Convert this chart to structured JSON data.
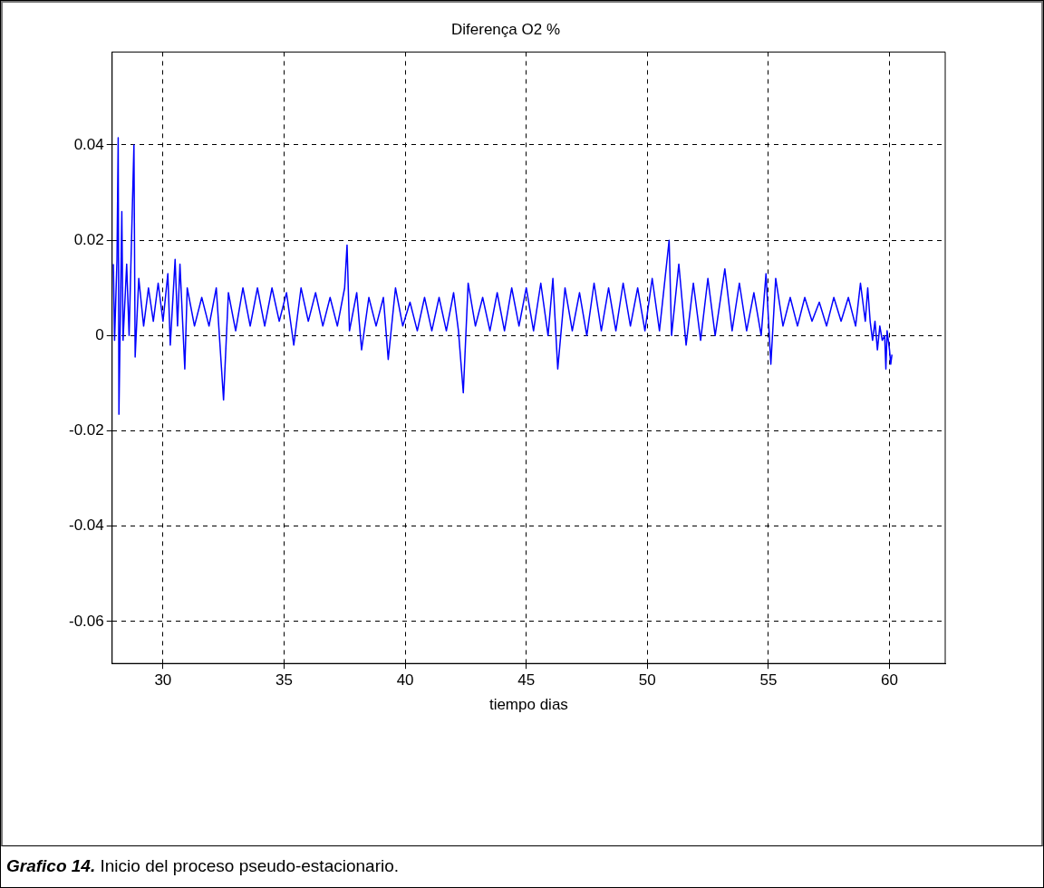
{
  "chart_data": {
    "type": "line",
    "title": "Diferença O2 %",
    "xlabel": "tiempo dias",
    "annotations": [
      "Grafico 14.",
      "Inicio del proceso pseudo-estacionario."
    ],
    "xlim": [
      27.9,
      62.3
    ],
    "ylim": [
      -0.0688,
      0.0595
    ],
    "xticks": [
      30,
      35,
      40,
      45,
      50,
      55,
      60
    ],
    "yticks": [
      -0.06,
      -0.04,
      -0.02,
      0,
      0.02,
      0.04
    ],
    "grid": true,
    "legend": false,
    "marker": "none",
    "line_style": "solid",
    "series": [
      {
        "color": "#0000ff",
        "x": [
          27.95,
          28.0,
          28.1,
          28.15,
          28.18,
          28.3,
          28.35,
          28.5,
          28.6,
          28.8,
          28.85,
          29.0,
          29.2,
          29.4,
          29.6,
          29.8,
          30.0,
          30.2,
          30.3,
          30.5,
          30.6,
          30.7,
          30.9,
          31.0,
          31.3,
          31.6,
          31.9,
          32.2,
          32.5,
          32.7,
          33.0,
          33.3,
          33.6,
          33.9,
          34.2,
          34.5,
          34.8,
          35.1,
          35.4,
          35.7,
          36.0,
          36.3,
          36.6,
          36.9,
          37.2,
          37.5,
          37.6,
          37.7,
          38.0,
          38.2,
          38.5,
          38.8,
          39.1,
          39.3,
          39.6,
          39.9,
          40.2,
          40.5,
          40.8,
          41.1,
          41.4,
          41.7,
          42.0,
          42.2,
          42.4,
          42.6,
          42.9,
          43.2,
          43.5,
          43.8,
          44.1,
          44.4,
          44.7,
          45.0,
          45.3,
          45.6,
          45.9,
          46.1,
          46.3,
          46.6,
          46.9,
          47.2,
          47.5,
          47.8,
          48.1,
          48.4,
          48.7,
          49.0,
          49.3,
          49.6,
          49.9,
          50.2,
          50.5,
          50.9,
          51.0,
          51.3,
          51.6,
          51.9,
          52.2,
          52.5,
          52.8,
          53.2,
          53.5,
          53.8,
          54.1,
          54.4,
          54.7,
          54.9,
          55.1,
          55.3,
          55.6,
          55.9,
          56.2,
          56.5,
          56.8,
          57.1,
          57.4,
          57.7,
          58.0,
          58.3,
          58.6,
          58.8,
          59.0,
          59.1,
          59.2,
          59.3,
          59.4,
          59.5,
          59.6,
          59.7,
          59.8,
          59.85,
          59.9,
          60.0,
          60.05,
          60.1
        ],
        "values": [
          0.015,
          -0.001,
          0.016,
          0.0415,
          -0.0165,
          0.026,
          -0.001,
          0.015,
          0.0,
          0.04,
          -0.0045,
          0.012,
          0.002,
          0.01,
          0.003,
          0.011,
          0.003,
          0.013,
          -0.002,
          0.016,
          0.002,
          0.015,
          -0.007,
          0.01,
          0.002,
          0.008,
          0.002,
          0.01,
          -0.0135,
          0.009,
          0.001,
          0.01,
          0.002,
          0.01,
          0.002,
          0.01,
          0.003,
          0.009,
          -0.002,
          0.01,
          0.003,
          0.009,
          0.002,
          0.008,
          0.002,
          0.01,
          0.019,
          0.001,
          0.009,
          -0.003,
          0.008,
          0.002,
          0.008,
          -0.005,
          0.01,
          0.002,
          0.007,
          0.001,
          0.008,
          0.001,
          0.008,
          0.001,
          0.009,
          0.001,
          -0.012,
          0.011,
          0.002,
          0.008,
          0.001,
          0.009,
          0.001,
          0.01,
          0.002,
          0.01,
          0.001,
          0.011,
          0.0,
          0.012,
          -0.007,
          0.01,
          0.001,
          0.009,
          0.0,
          0.011,
          0.001,
          0.01,
          0.001,
          0.011,
          0.002,
          0.01,
          0.001,
          0.012,
          0.001,
          0.02,
          0.0,
          0.015,
          -0.002,
          0.011,
          -0.001,
          0.012,
          0.0,
          0.014,
          0.001,
          0.011,
          0.001,
          0.009,
          0.0,
          0.013,
          -0.006,
          0.012,
          0.002,
          0.008,
          0.002,
          0.008,
          0.003,
          0.007,
          0.002,
          0.008,
          0.003,
          0.008,
          0.002,
          0.011,
          0.003,
          0.01,
          0.003,
          -0.001,
          0.003,
          -0.003,
          0.002,
          -0.001,
          0.0,
          -0.007,
          0.001,
          -0.003,
          -0.006,
          -0.004
        ]
      }
    ]
  }
}
